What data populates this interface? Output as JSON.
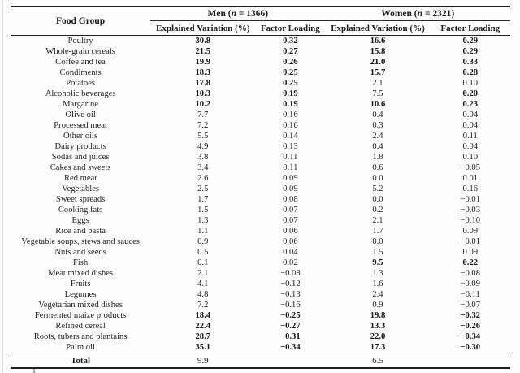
{
  "table": {
    "header": {
      "food_group": "Food Group",
      "men": {
        "prefix": "Men (",
        "n": "n",
        "suffix": " = 1366)"
      },
      "women": {
        "prefix": "Women (",
        "n": "n",
        "suffix": " = 2321)"
      },
      "men_cols": {
        "explained": "Explained Variation (%)",
        "loading": "Factor Loading"
      },
      "women_cols": {
        "explained": "Explained Variation (%)",
        "loading": "Factor Loading"
      }
    },
    "rows": [
      {
        "food": "Poultry",
        "values": [
          "30.8",
          "0.32",
          "16.6",
          "0.29"
        ],
        "bold": [
          1,
          1,
          1,
          1
        ]
      },
      {
        "food": "Whole-grain cereals",
        "values": [
          "21.5",
          "0.27",
          "15.8",
          "0.29"
        ],
        "bold": [
          1,
          1,
          1,
          1
        ]
      },
      {
        "food": "Coffee and tea",
        "values": [
          "19.9",
          "0.26",
          "21.0",
          "0.33"
        ],
        "bold": [
          1,
          1,
          1,
          1
        ]
      },
      {
        "food": "Condiments",
        "values": [
          "18.3",
          "0.25",
          "15.7",
          "0.28"
        ],
        "bold": [
          1,
          1,
          1,
          1
        ]
      },
      {
        "food": "Potatoes",
        "values": [
          "17.8",
          "0.25",
          "2.1",
          "0.10"
        ],
        "bold": [
          1,
          1,
          0,
          0
        ]
      },
      {
        "food": "Alcoholic beverages",
        "values": [
          "10.3",
          "0.19",
          "7.5",
          "0.20"
        ],
        "bold": [
          1,
          1,
          0,
          1
        ]
      },
      {
        "food": "Margarine",
        "values": [
          "10.2",
          "0.19",
          "10.6",
          "0.23"
        ],
        "bold": [
          1,
          1,
          1,
          1
        ]
      },
      {
        "food": "Olive oil",
        "values": [
          "7.7",
          "0.16",
          "0.4",
          "0.04"
        ],
        "bold": [
          0,
          0,
          0,
          0
        ]
      },
      {
        "food": "Processed meat",
        "values": [
          "7.2",
          "0.16",
          "0.3",
          "0.04"
        ],
        "bold": [
          0,
          0,
          0,
          0
        ]
      },
      {
        "food": "Other oils",
        "values": [
          "5.5",
          "0.14",
          "2.4",
          "0.11"
        ],
        "bold": [
          0,
          0,
          0,
          0
        ]
      },
      {
        "food": "Dairy products",
        "values": [
          "4.9",
          "0.13",
          "0.4",
          "0.04"
        ],
        "bold": [
          0,
          0,
          0,
          0
        ]
      },
      {
        "food": "Sodas and juices",
        "values": [
          "3.8",
          "0.11",
          "1.8",
          "0.10"
        ],
        "bold": [
          0,
          0,
          0,
          0
        ]
      },
      {
        "food": "Cakes and sweets",
        "values": [
          "3.4",
          "0.11",
          "0.6",
          "−0.05"
        ],
        "bold": [
          0,
          0,
          0,
          0
        ]
      },
      {
        "food": "Red meat",
        "values": [
          "2.6",
          "0.09",
          "0.0",
          "0.01"
        ],
        "bold": [
          0,
          0,
          0,
          0
        ]
      },
      {
        "food": "Vegetables",
        "values": [
          "2.5",
          "0.09",
          "5.2",
          "0.16"
        ],
        "bold": [
          0,
          0,
          0,
          0
        ]
      },
      {
        "food": "Sweet spreads",
        "values": [
          "1.7",
          "0.08",
          "0.0",
          "−0.01"
        ],
        "bold": [
          0,
          0,
          0,
          0
        ]
      },
      {
        "food": "Cooking fats",
        "values": [
          "1.5",
          "0.07",
          "0.2",
          "−0.03"
        ],
        "bold": [
          0,
          0,
          0,
          0
        ]
      },
      {
        "food": "Eggs",
        "values": [
          "1.3",
          "0.07",
          "2.1",
          "−0.10"
        ],
        "bold": [
          0,
          0,
          0,
          0
        ]
      },
      {
        "food": "Rice and pasta",
        "values": [
          "1.1",
          "0.06",
          "1.7",
          "0.09"
        ],
        "bold": [
          0,
          0,
          0,
          0
        ]
      },
      {
        "food": "Vegetable soups, stews and sauces",
        "values": [
          "0.9",
          "0.06",
          "0.0",
          "−0.01"
        ],
        "bold": [
          0,
          0,
          0,
          0
        ]
      },
      {
        "food": "Nuts and seeds",
        "values": [
          "0.5",
          "0.04",
          "1.5",
          "0.09"
        ],
        "bold": [
          0,
          0,
          0,
          0
        ]
      },
      {
        "food": "Fish",
        "values": [
          "0.1",
          "0.02",
          "9.5",
          "0.22"
        ],
        "bold": [
          0,
          0,
          1,
          1
        ]
      },
      {
        "food": "Meat mixed dishes",
        "values": [
          "2.1",
          "−0.08",
          "1.3",
          "−0.08"
        ],
        "bold": [
          0,
          0,
          0,
          0
        ]
      },
      {
        "food": "Fruits",
        "values": [
          "4.1",
          "−0.12",
          "1.6",
          "−0.09"
        ],
        "bold": [
          0,
          0,
          0,
          0
        ]
      },
      {
        "food": "Legumes",
        "values": [
          "4.8",
          "−0.13",
          "2.4",
          "−0.11"
        ],
        "bold": [
          0,
          0,
          0,
          0
        ]
      },
      {
        "food": "Vegetarian mixed dishes",
        "values": [
          "7.2",
          "−0.16",
          "0.9",
          "−0.07"
        ],
        "bold": [
          0,
          0,
          0,
          0
        ]
      },
      {
        "food": "Fermented maize products",
        "values": [
          "18.4",
          "−0.25",
          "19.8",
          "−0.32"
        ],
        "bold": [
          1,
          1,
          1,
          1
        ]
      },
      {
        "food": "Refined cereal",
        "values": [
          "22.4",
          "−0.27",
          "13.3",
          "−0.26"
        ],
        "bold": [
          1,
          1,
          1,
          1
        ]
      },
      {
        "food": "Roots, tubers and plantains",
        "values": [
          "28.7",
          "−0.31",
          "22.0",
          "−0.34"
        ],
        "bold": [
          1,
          1,
          1,
          1
        ]
      },
      {
        "food": "Palm oil",
        "values": [
          "35.1",
          "−0.34",
          "17.3",
          "−0.30"
        ],
        "bold": [
          1,
          1,
          1,
          1
        ]
      }
    ],
    "total": {
      "label": "Total",
      "men_ev": "9.9",
      "men_fl": "",
      "women_ev": "6.5",
      "women_fl": ""
    },
    "footnote_mark": "1"
  }
}
